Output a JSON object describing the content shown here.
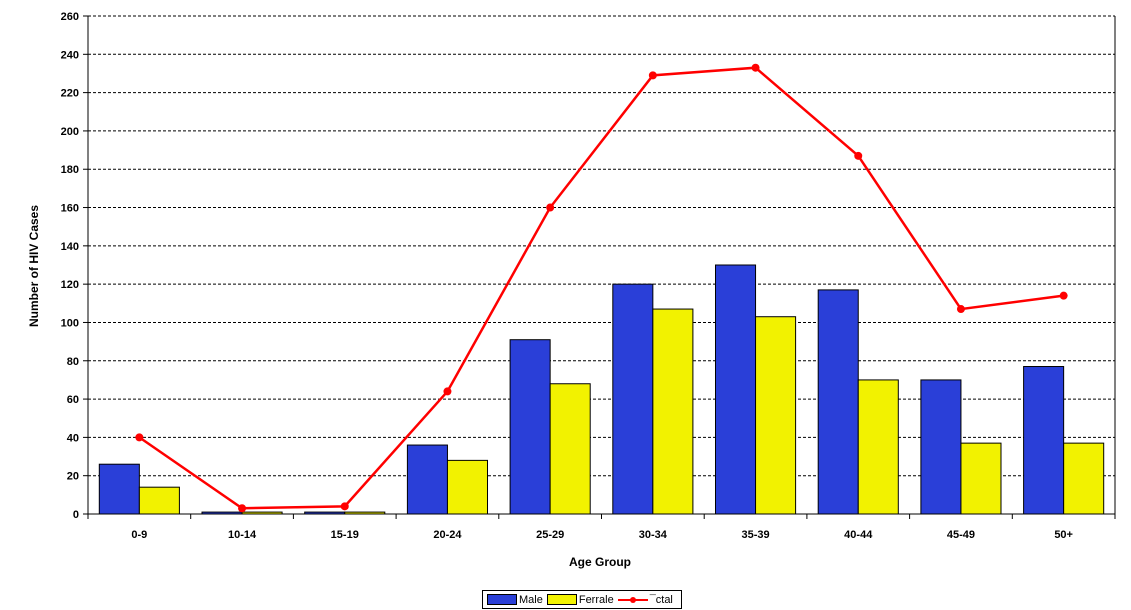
{
  "chart_data": {
    "type": "bar",
    "categories": [
      "0-9",
      "10-14",
      "15-19",
      "20-24",
      "25-29",
      "30-34",
      "35-39",
      "40-44",
      "45-49",
      "50+"
    ],
    "series": [
      {
        "name": "Male",
        "kind": "bar",
        "color": "#2a3fd8",
        "values": [
          26,
          1,
          1,
          36,
          91,
          120,
          130,
          117,
          70,
          77
        ]
      },
      {
        "name": "Ferrale",
        "kind": "bar",
        "color": "#f2f200",
        "values": [
          14,
          1,
          1,
          28,
          68,
          107,
          103,
          70,
          37,
          37
        ]
      },
      {
        "name": "Total",
        "kind": "line",
        "color": "#ff0000",
        "values": [
          40,
          3,
          4,
          64,
          160,
          229,
          233,
          187,
          107,
          114
        ]
      }
    ],
    "ylim": [
      0,
      260
    ],
    "yticks": [
      "0",
      "20",
      "40",
      "60",
      "80",
      "100",
      "120",
      "140",
      "160",
      "180",
      "200",
      "220",
      "240",
      "260"
    ],
    "ylabel": "Number of HIV Cases",
    "xlabel": "Age Group",
    "grid": true,
    "legend_position": "bottom"
  },
  "legend": {
    "male": "Male",
    "female": "Ferrale",
    "total": "¯ctal"
  }
}
